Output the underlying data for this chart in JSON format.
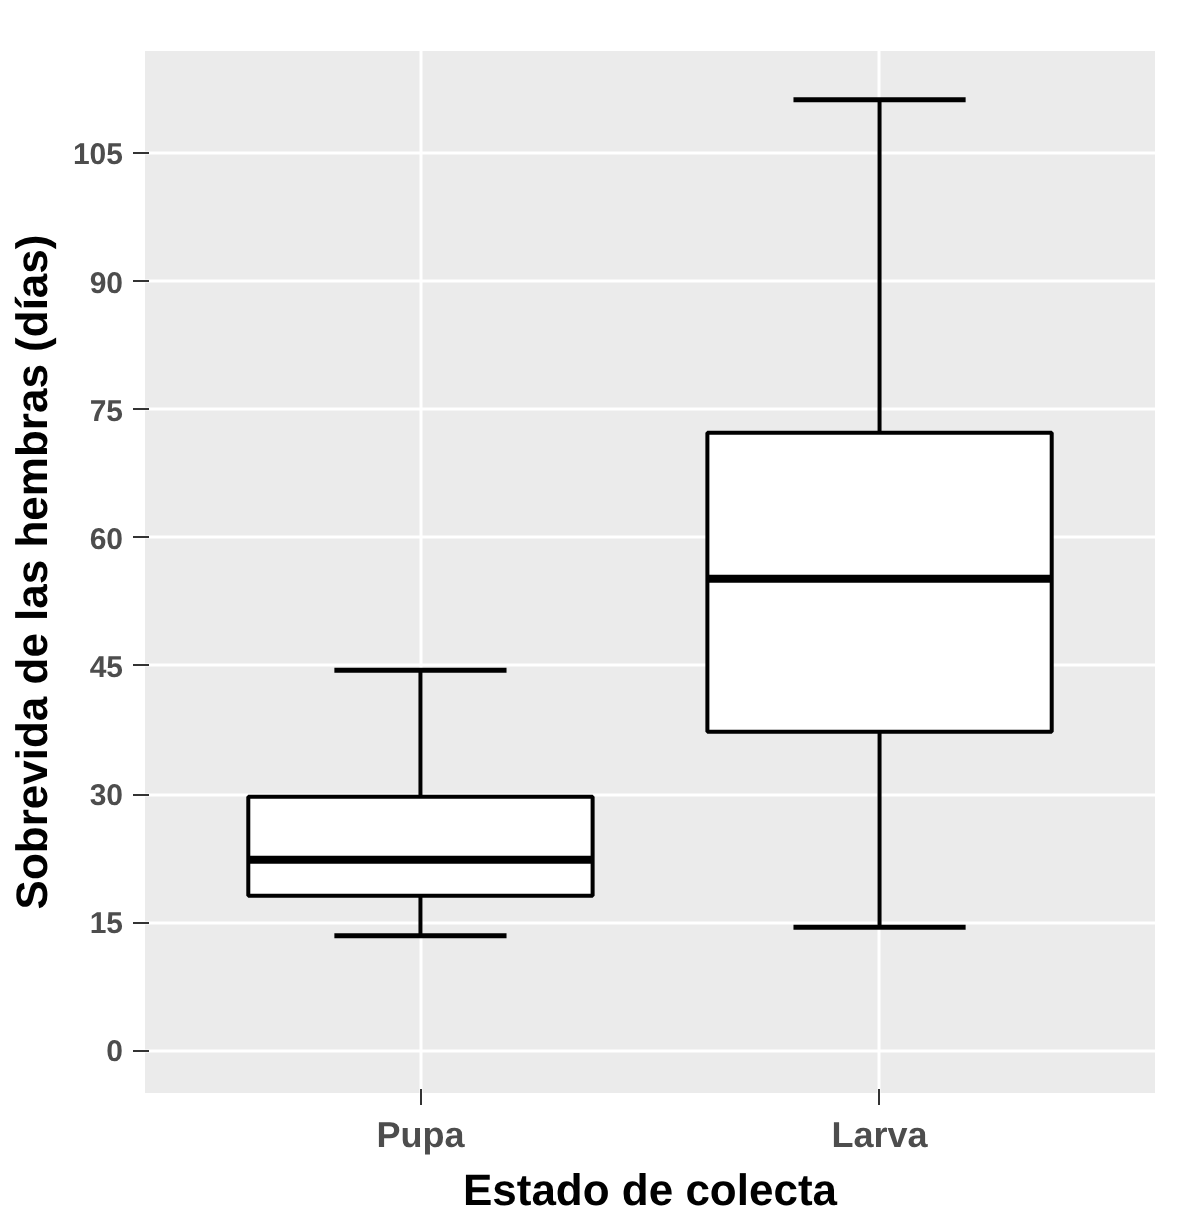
{
  "chart_data": {
    "type": "box",
    "xlabel": "Estado de colecta",
    "ylabel": "Sobrevida de las hembras (días)",
    "categories": [
      "Pupa",
      "Larva"
    ],
    "boxes": [
      {
        "low": 13.4,
        "q1": 18.1,
        "median": 22.3,
        "q3": 29.7,
        "high": 44.5
      },
      {
        "low": 14.4,
        "q1": 37.3,
        "median": 55.2,
        "q3": 72.3,
        "high": 111.3
      }
    ],
    "ylim": [
      -5,
      117
    ],
    "yticks": [
      0,
      15,
      30,
      45,
      60,
      75,
      90,
      105
    ],
    "grid": true
  }
}
